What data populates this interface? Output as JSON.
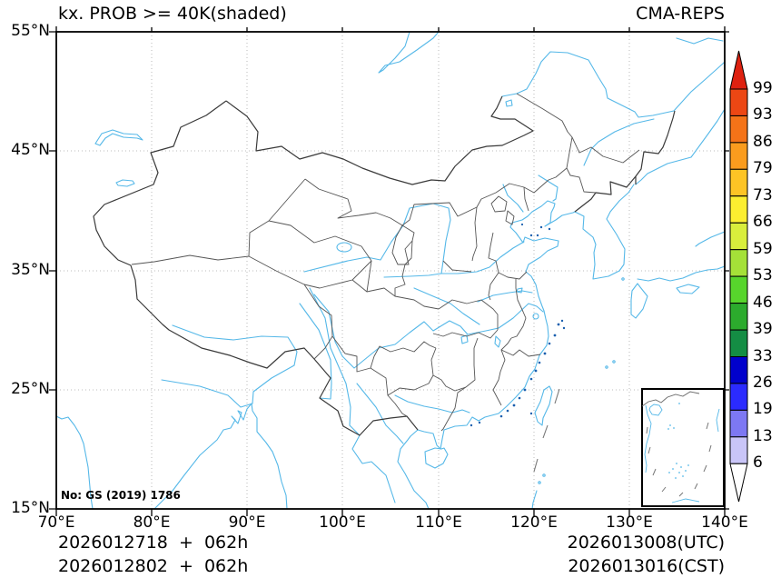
{
  "title": {
    "left": "kx. PROB >= 40K(shaded)",
    "right": "CMA-REPS"
  },
  "axes": {
    "lon_labels": [
      "70°E",
      "80°E",
      "90°E",
      "100°E",
      "110°E",
      "120°E",
      "130°E",
      "140°E"
    ],
    "lat_labels": [
      "55°N",
      "45°N",
      "35°N",
      "25°N",
      "15°N"
    ]
  },
  "colorbar": {
    "labels": [
      "99",
      "93",
      "86",
      "79",
      "73",
      "66",
      "59",
      "53",
      "46",
      "39",
      "33",
      "26",
      "19",
      "13",
      "6"
    ],
    "colors_top_to_bottom": [
      "#de2110",
      "#ec4714",
      "#f47318",
      "#fa9c1e",
      "#fdc425",
      "#fcee30",
      "#d9ee3c",
      "#a5e138",
      "#57d52c",
      "#2cab2d",
      "#148d44",
      "#0101cc",
      "#2b2bfe",
      "#7d78f3",
      "#c9c5f8",
      "#ffffff"
    ]
  },
  "map": {
    "annotation": "No: GS (2019) 1786",
    "line_colors": {
      "coast_rivers": "#55b8e8",
      "national_border": "#3a3a3a",
      "province_border": "#555555",
      "graticule": "#a8a8a8",
      "island_specks": "#1b5fae"
    }
  },
  "footer": {
    "left_line1": "2026012718  +  062h",
    "left_line2": "2026012802  +  062h",
    "right_line1": "2026013008(UTC)",
    "right_line2": "2026013016(CST)"
  }
}
